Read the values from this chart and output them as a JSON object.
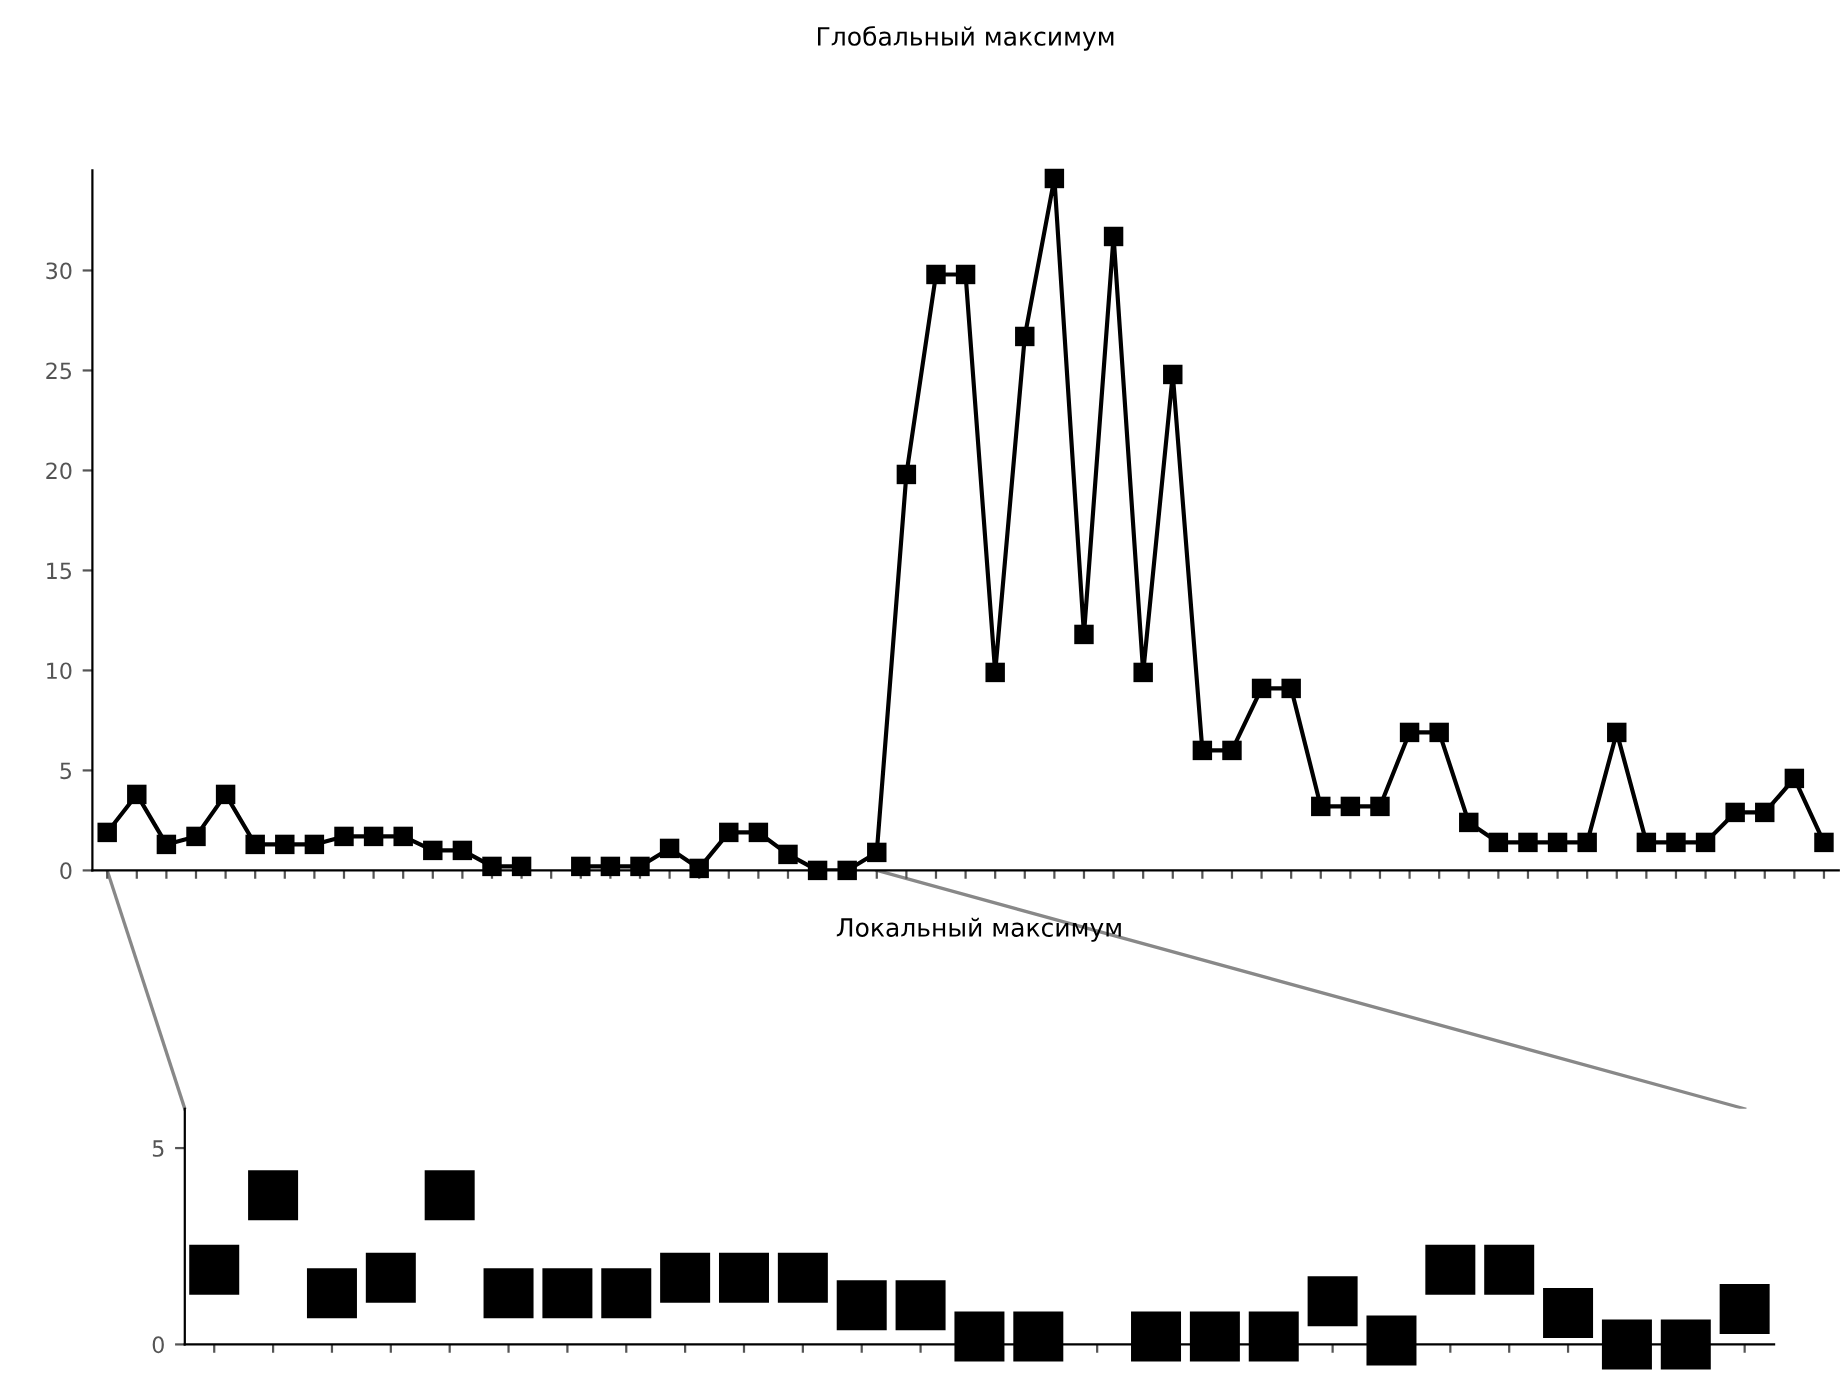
{
  "chart_data": [
    {
      "type": "line",
      "title": "Глобальный максимум",
      "marker": "square",
      "line_style": "solid",
      "grid": false,
      "tick_labels": "y",
      "categories": [
        null,
        null,
        null,
        null,
        null,
        null,
        null,
        null,
        null,
        null,
        null,
        null,
        null,
        null,
        null,
        null,
        null,
        null,
        null,
        null,
        null,
        null,
        null,
        null,
        null,
        null,
        null,
        null,
        null,
        null,
        null,
        null,
        null,
        null,
        null,
        null,
        null,
        null,
        null,
        null,
        null,
        null,
        null,
        null,
        null,
        null,
        null,
        null,
        null,
        null,
        null,
        null,
        null,
        null,
        null,
        null,
        null,
        null,
        null
      ],
      "series": [
        {
          "color": "#000000",
          "values": [
            1.9,
            3.8,
            1.3,
            1.7,
            3.8,
            1.3,
            1.3,
            1.3,
            1.7,
            1.7,
            1.7,
            1.0,
            1.0,
            0.2,
            0.2,
            null,
            null,
            null,
            null,
            null,
            null,
            null,
            null,
            null,
            null,
            null,
            null,
            null,
            null,
            null,
            null,
            null,
            null,
            null,
            null,
            null,
            null,
            null,
            null,
            null,
            null,
            null,
            null,
            null,
            null,
            null,
            null,
            null,
            null,
            null,
            null,
            null,
            null,
            null,
            null,
            null,
            null,
            null,
            null
          ]
        },
        {
          "color": "#000000",
          "values": [
            null,
            null,
            null,
            null,
            null,
            null,
            null,
            null,
            null,
            null,
            null,
            null,
            null,
            null,
            null,
            null,
            0.2,
            0.2,
            0.2,
            1.1,
            0.1,
            1.9,
            1.9,
            0.8,
            0,
            0,
            0.9,
            19.8,
            29.8,
            29.8,
            9.9,
            26.7,
            34.6,
            11.8,
            31.7,
            9.9,
            24.8,
            6.0,
            6.0,
            9.1,
            9.1,
            3.2,
            3.2,
            3.2,
            6.9,
            6.9,
            2.4,
            1.4,
            1.4,
            1.4,
            1.4,
            6.9,
            1.4,
            1.4,
            1.4,
            2.9,
            2.9,
            4.6,
            1.4
          ]
        }
      ],
      "ylim": [
        0,
        35
      ],
      "yticks": [
        0,
        5,
        10,
        15,
        20,
        25,
        30
      ]
    },
    {
      "type": "scatter",
      "title": "Локальный максимум",
      "marker": "square",
      "grid": false,
      "tick_labels": "y",
      "categories": [
        null,
        null,
        null,
        null,
        null,
        null,
        null,
        null,
        null,
        null,
        null,
        null,
        null,
        null,
        null,
        null,
        null,
        null,
        null,
        null,
        null,
        null,
        null,
        null,
        null,
        null,
        null
      ],
      "series": [
        {
          "color": "#000000",
          "values": [
            1.9,
            3.8,
            1.3,
            1.7,
            3.8,
            1.3,
            1.3,
            1.3,
            1.7,
            1.7,
            1.7,
            1.0,
            1.0,
            0.2,
            0.2,
            null,
            0.2,
            0.2,
            0.2,
            1.1,
            0.1,
            1.9,
            1.9,
            0.8,
            0,
            0,
            0.9
          ]
        }
      ],
      "ylim": [
        0,
        6
      ],
      "yticks": [
        0,
        5
      ]
    }
  ]
}
